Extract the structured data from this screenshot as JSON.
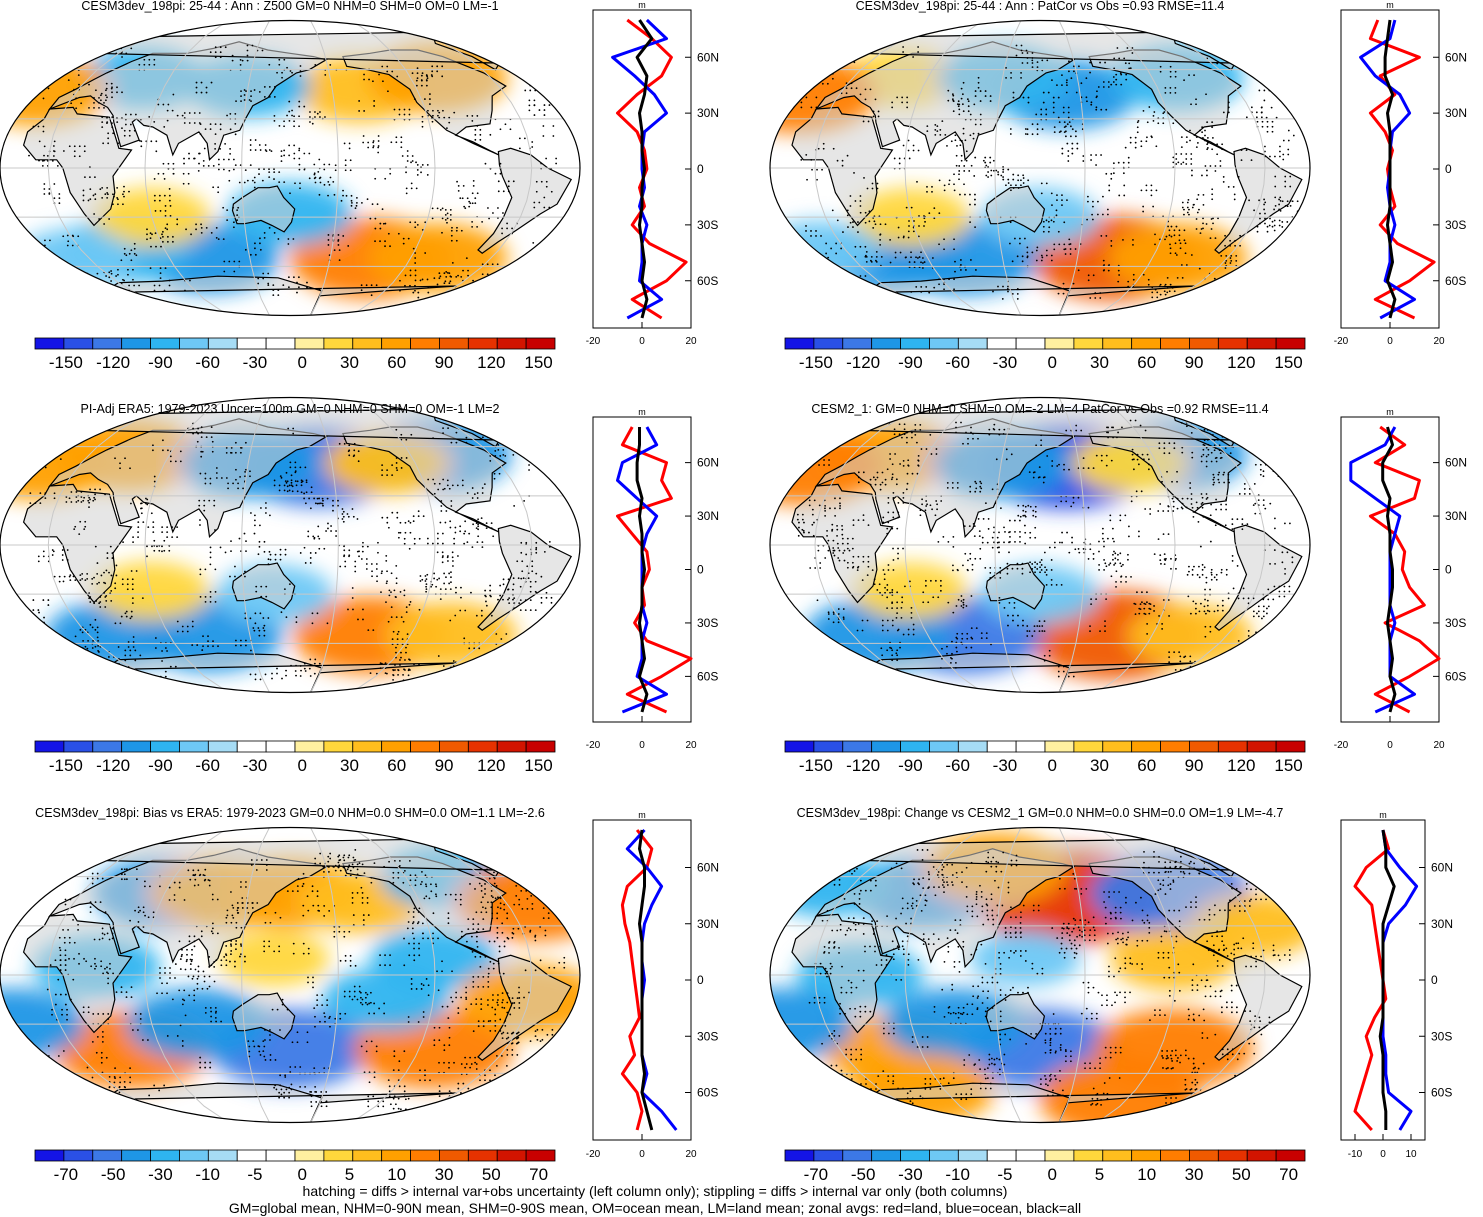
{
  "footer": {
    "line1": "hatching = diffs > internal var+obs uncertainty (left column only); stippling = diffs > internal var only (both columns)",
    "line2": "GM=global mean, NHM=0-90N mean, SHM=0-90S mean, OM=ocean mean, LM=land mean; zonal avgs: red=land, blue=ocean, black=all"
  },
  "colors": {
    "land": "#d2d2d2",
    "zonal_land": "#ff0000",
    "zonal_ocean": "#0000ff",
    "zonal_all": "#000000",
    "graticule": "#c8c8c8",
    "colorbar_a": [
      "#1414e6",
      "#2a50e6",
      "#3c78e6",
      "#1e96e6",
      "#2eb4f0",
      "#6ec8f5",
      "#a6dcf5",
      "#ffffff",
      "#ffffff",
      "#fff0a0",
      "#ffd73c",
      "#ffbe1e",
      "#ffa000",
      "#ff7d00",
      "#f05a00",
      "#e63200",
      "#d21400",
      "#c80000"
    ],
    "colorbar_b": [
      "#1414e6",
      "#2a50e6",
      "#3c78e6",
      "#1e96e6",
      "#2eb4f0",
      "#6ec8f5",
      "#a6dcf5",
      "#ffffff",
      "#ffffff",
      "#fff0a0",
      "#ffd73c",
      "#ffbe1e",
      "#ffa000",
      "#ff7d00",
      "#f05a00",
      "#e63200",
      "#d21400",
      "#c80000"
    ]
  },
  "chart_data": [
    {
      "type": "map",
      "title": "CESM3dev_198pi: 25-44 : Ann : Z500 GM=0 NHM=0 SHM=0 OM=0 LM=-1",
      "colorbar": {
        "units": "m",
        "tick_labels": [
          "-150",
          "-120",
          "-90",
          "-60",
          "-30",
          "0",
          "30",
          "60",
          "90",
          "120",
          "150"
        ]
      },
      "anomaly_blobs": [
        {
          "lon": -160,
          "lat": 48,
          "value": 50
        },
        {
          "lon": 40,
          "lat": 55,
          "value": -40
        },
        {
          "lon": 120,
          "lat": 50,
          "value": -40
        },
        {
          "lon": -100,
          "lat": 55,
          "value": 60
        },
        {
          "lon": -30,
          "lat": 48,
          "value": 70
        },
        {
          "lon": -150,
          "lat": -55,
          "value": 90
        },
        {
          "lon": -100,
          "lat": -55,
          "value": 60
        },
        {
          "lon": 90,
          "lat": -55,
          "value": -60
        },
        {
          "lon": 30,
          "lat": -50,
          "value": -50
        },
        {
          "lon": 150,
          "lat": -28,
          "value": -40
        },
        {
          "lon": 60,
          "lat": -30,
          "value": 30
        },
        {
          "lon": -10,
          "lat": -55,
          "value": -30
        }
      ],
      "zonal": {
        "x_range": [
          -20,
          20
        ],
        "x_ticks": [
          "-20",
          "0",
          "20"
        ],
        "lat_ticks": [
          "60N",
          "30N",
          "0",
          "30S",
          "60S"
        ],
        "units": "m",
        "lats": [
          80,
          70,
          60,
          50,
          40,
          30,
          20,
          10,
          0,
          -10,
          -20,
          -30,
          -40,
          -50,
          -60,
          -70,
          -80
        ],
        "land": [
          -6,
          4,
          12,
          8,
          -2,
          -10,
          -2,
          1,
          2,
          -1,
          1,
          -4,
          3,
          18,
          10,
          -4,
          8
        ],
        "ocean": [
          2,
          10,
          -12,
          -3,
          5,
          10,
          1,
          0,
          0,
          1,
          -1,
          2,
          0,
          0,
          -1,
          8,
          -6
        ],
        "all": [
          -1,
          4,
          -2,
          2,
          1,
          -1,
          0,
          0,
          1,
          0,
          0,
          -1,
          0,
          1,
          0,
          2,
          0
        ]
      }
    },
    {
      "type": "map",
      "title": "CESM3dev_198pi: 25-44 : Ann : PatCor vs Obs =0.93 RMSE=11.4",
      "colorbar": {
        "units": "m",
        "tick_labels": [
          "-150",
          "-120",
          "-90",
          "-60",
          "-30",
          "0",
          "30",
          "60",
          "90",
          "120",
          "150"
        ]
      },
      "anomaly_blobs": [
        {
          "lon": 170,
          "lat": 45,
          "value": -60
        },
        {
          "lon": 40,
          "lat": 55,
          "value": 30
        },
        {
          "lon": 120,
          "lat": 55,
          "value": -50
        },
        {
          "lon": -100,
          "lat": 55,
          "value": -50
        },
        {
          "lon": -30,
          "lat": 45,
          "value": 80
        },
        {
          "lon": -150,
          "lat": -55,
          "value": 100
        },
        {
          "lon": -100,
          "lat": -55,
          "value": 60
        },
        {
          "lon": 90,
          "lat": -55,
          "value": -70
        },
        {
          "lon": 30,
          "lat": -55,
          "value": -60
        },
        {
          "lon": 150,
          "lat": -30,
          "value": -30
        },
        {
          "lon": 60,
          "lat": -30,
          "value": 30
        },
        {
          "lon": -20,
          "lat": -50,
          "value": -30
        }
      ],
      "zonal": {
        "x_range": [
          -20,
          20
        ],
        "x_ticks": [
          "-20",
          "0",
          "20"
        ],
        "lat_ticks": [
          "60N",
          "30N",
          "0",
          "30S",
          "60S"
        ],
        "units": "m",
        "lats": [
          80,
          70,
          60,
          50,
          40,
          30,
          20,
          10,
          0,
          -10,
          -20,
          -30,
          -40,
          -50,
          -60,
          -70,
          -80
        ],
        "land": [
          -5,
          -8,
          12,
          -4,
          2,
          -8,
          -2,
          1,
          -1,
          0,
          2,
          -4,
          3,
          18,
          8,
          -6,
          10
        ],
        "ocean": [
          2,
          0,
          -12,
          -6,
          4,
          8,
          1,
          0,
          0,
          -1,
          0,
          2,
          0,
          0,
          -2,
          10,
          -4
        ],
        "all": [
          0,
          -1,
          -2,
          -2,
          1,
          -1,
          0,
          0,
          0,
          0,
          0,
          -1,
          0,
          1,
          -1,
          2,
          0
        ]
      }
    },
    {
      "type": "map",
      "title": "PI-Adj ERA5: 1979-2023 Uncer=100m GM=0 NHM=0 SHM=0 OM=-1 LM=2",
      "colorbar": {
        "units": "m",
        "tick_labels": [
          "-150",
          "-120",
          "-90",
          "-60",
          "-30",
          "0",
          "30",
          "60",
          "90",
          "120",
          "150"
        ]
      },
      "anomaly_blobs": [
        {
          "lon": 170,
          "lat": 48,
          "value": -90
        },
        {
          "lon": 30,
          "lat": 55,
          "value": 70
        },
        {
          "lon": 120,
          "lat": 50,
          "value": -60
        },
        {
          "lon": -100,
          "lat": 55,
          "value": -70
        },
        {
          "lon": -30,
          "lat": 50,
          "value": 70
        },
        {
          "lon": -150,
          "lat": -55,
          "value": 80
        },
        {
          "lon": -90,
          "lat": -55,
          "value": 50
        },
        {
          "lon": 90,
          "lat": -55,
          "value": -70
        },
        {
          "lon": 20,
          "lat": -55,
          "value": -60
        },
        {
          "lon": 140,
          "lat": -30,
          "value": -30
        },
        {
          "lon": 60,
          "lat": -28,
          "value": 30
        },
        {
          "lon": -140,
          "lat": 50,
          "value": 40
        }
      ],
      "zonal": {
        "x_range": [
          -20,
          20
        ],
        "x_ticks": [
          "-20",
          "0",
          "20"
        ],
        "lat_ticks": [
          "60N",
          "30N",
          "0",
          "30S",
          "60S"
        ],
        "units": "m",
        "lats": [
          80,
          70,
          60,
          50,
          40,
          30,
          20,
          10,
          0,
          -10,
          -20,
          -30,
          -40,
          -50,
          -60,
          -70,
          -80
        ],
        "land": [
          -4,
          -8,
          10,
          8,
          12,
          -10,
          -4,
          2,
          3,
          0,
          1,
          -3,
          2,
          20,
          8,
          -6,
          10
        ],
        "ocean": [
          2,
          6,
          -8,
          -10,
          -2,
          6,
          2,
          0,
          0,
          0,
          0,
          2,
          0,
          0,
          -2,
          10,
          -8
        ],
        "all": [
          -1,
          -1,
          -2,
          -2,
          0,
          -1,
          0,
          0,
          1,
          0,
          0,
          -1,
          0,
          1,
          -1,
          2,
          0
        ]
      }
    },
    {
      "type": "map",
      "title": "CESM2_1: GM=0 NHM=0 SHM=0 OM=-2 LM=4 PatCor vs Obs =0.92 RMSE=11.4",
      "colorbar": {
        "units": "m",
        "tick_labels": [
          "-150",
          "-120",
          "-90",
          "-60",
          "-30",
          "0",
          "30",
          "60",
          "90",
          "120",
          "150"
        ]
      },
      "anomaly_blobs": [
        {
          "lon": 170,
          "lat": 48,
          "value": -100
        },
        {
          "lon": 30,
          "lat": 55,
          "value": 60
        },
        {
          "lon": 120,
          "lat": 50,
          "value": -60
        },
        {
          "lon": -100,
          "lat": 55,
          "value": -60
        },
        {
          "lon": -30,
          "lat": 48,
          "value": 80
        },
        {
          "lon": -150,
          "lat": -55,
          "value": 110
        },
        {
          "lon": -90,
          "lat": -55,
          "value": 40
        },
        {
          "lon": 90,
          "lat": -55,
          "value": -80
        },
        {
          "lon": 20,
          "lat": -55,
          "value": -70
        },
        {
          "lon": 150,
          "lat": -30,
          "value": -30
        },
        {
          "lon": 60,
          "lat": -28,
          "value": 25
        },
        {
          "lon": -140,
          "lat": 50,
          "value": 30
        }
      ],
      "zonal": {
        "x_range": [
          -20,
          20
        ],
        "x_ticks": [
          "-20",
          "0",
          "20"
        ],
        "lat_ticks": [
          "60N",
          "30N",
          "0",
          "30S",
          "60S"
        ],
        "units": "m",
        "lats": [
          80,
          70,
          60,
          50,
          40,
          30,
          20,
          10,
          0,
          -10,
          -20,
          -30,
          -40,
          -50,
          -60,
          -70,
          -80
        ],
        "land": [
          -4,
          6,
          -6,
          12,
          10,
          -8,
          2,
          6,
          5,
          8,
          14,
          -2,
          12,
          20,
          8,
          -6,
          8
        ],
        "ocean": [
          2,
          -2,
          -16,
          -16,
          -6,
          4,
          2,
          0,
          0,
          0,
          0,
          2,
          0,
          0,
          0,
          10,
          -6
        ],
        "all": [
          -1,
          1,
          -3,
          -3,
          0,
          -1,
          0,
          0,
          1,
          1,
          0,
          -1,
          0,
          1,
          0,
          2,
          0
        ]
      }
    },
    {
      "type": "map",
      "title": "CESM3dev_198pi: Bias vs ERA5: 1979-2023 GM=0.0 NHM=0.0 SHM=0.0 OM=1.1 LM=-2.6",
      "colorbar": {
        "units": "m",
        "tick_labels": [
          "-70",
          "-50",
          "-30",
          "-10",
          "-5",
          "0",
          "5",
          "10",
          "30",
          "50",
          "70"
        ]
      },
      "anomaly_blobs": [
        {
          "lon": 60,
          "lat": 50,
          "value": -30
        },
        {
          "lon": 100,
          "lat": 50,
          "value": 30
        },
        {
          "lon": 150,
          "lat": 50,
          "value": 30
        },
        {
          "lon": -160,
          "lat": 45,
          "value": 20
        },
        {
          "lon": -90,
          "lat": 60,
          "value": -20
        },
        {
          "lon": -40,
          "lat": 45,
          "value": 40
        },
        {
          "lon": 30,
          "lat": 5,
          "value": -20
        },
        {
          "lon": -120,
          "lat": 10,
          "value": -20
        },
        {
          "lon": 140,
          "lat": 10,
          "value": 10
        },
        {
          "lon": 40,
          "lat": -45,
          "value": 40
        },
        {
          "lon": 150,
          "lat": -45,
          "value": -40
        },
        {
          "lon": -110,
          "lat": -45,
          "value": 40
        },
        {
          "lon": -30,
          "lat": -30,
          "value": -30
        },
        {
          "lon": 90,
          "lat": -30,
          "value": -30
        },
        {
          "lon": -150,
          "lat": -15,
          "value": -20
        },
        {
          "lon": -60,
          "lat": -15,
          "value": 30
        }
      ],
      "zonal": {
        "x_range": [
          -20,
          20
        ],
        "x_ticks": [
          "-20",
          "0",
          "20"
        ],
        "lat_ticks": [
          "60N",
          "30N",
          "0",
          "30S",
          "60S"
        ],
        "units": "m",
        "lats": [
          80,
          70,
          60,
          50,
          40,
          30,
          20,
          10,
          0,
          -10,
          -20,
          -30,
          -40,
          -50,
          -60,
          -70,
          -80
        ],
        "land": [
          -2,
          4,
          2,
          -6,
          -8,
          -7,
          -5,
          -4,
          -3,
          -2,
          -1,
          -5,
          -3,
          -8,
          -2,
          0,
          -2
        ],
        "ocean": [
          1,
          -6,
          2,
          8,
          4,
          1,
          0,
          0,
          1,
          0,
          0,
          0,
          0,
          2,
          0,
          8,
          14
        ],
        "all": [
          0,
          -1,
          1,
          1,
          0,
          -1,
          0,
          0,
          0,
          0,
          0,
          0,
          0,
          1,
          0,
          2,
          4
        ]
      }
    },
    {
      "type": "map",
      "title": "CESM3dev_198pi: Change vs CESM2_1 GM=0.0 NHM=0.0 SHM=0.0 OM=1.9 LM=-4.7",
      "colorbar": {
        "units": "m",
        "tick_labels": [
          "-70",
          "-50",
          "-30",
          "-10",
          "-5",
          "0",
          "5",
          "10",
          "30",
          "50",
          "70"
        ]
      },
      "anomaly_blobs": [
        {
          "lon": 170,
          "lat": 48,
          "value": 60
        },
        {
          "lon": 60,
          "lat": 50,
          "value": -30
        },
        {
          "lon": 110,
          "lat": 65,
          "value": 30
        },
        {
          "lon": -110,
          "lat": 50,
          "value": -40
        },
        {
          "lon": -60,
          "lat": 30,
          "value": 20
        },
        {
          "lon": -20,
          "lat": 55,
          "value": -20
        },
        {
          "lon": 30,
          "lat": 0,
          "value": -20
        },
        {
          "lon": -120,
          "lat": 10,
          "value": 20
        },
        {
          "lon": 140,
          "lat": 10,
          "value": -10
        },
        {
          "lon": 40,
          "lat": -45,
          "value": 30
        },
        {
          "lon": 150,
          "lat": -45,
          "value": -40
        },
        {
          "lon": -110,
          "lat": -45,
          "value": 40
        },
        {
          "lon": -30,
          "lat": -30,
          "value": -30
        },
        {
          "lon": 90,
          "lat": -30,
          "value": -30
        },
        {
          "lon": -130,
          "lat": -75,
          "value": 40
        },
        {
          "lon": 40,
          "lat": -70,
          "value": 30
        }
      ],
      "zonal": {
        "x_range": [
          -15,
          15
        ],
        "x_ticks": [
          "-10",
          "0",
          "10"
        ],
        "lat_ticks": [
          "60N",
          "30N",
          "0",
          "30S",
          "60S"
        ],
        "units": "m",
        "lats": [
          80,
          70,
          60,
          50,
          40,
          30,
          20,
          10,
          0,
          -10,
          -20,
          -30,
          -40,
          -50,
          -60,
          -70,
          -80
        ],
        "land": [
          0,
          2,
          -6,
          -10,
          -4,
          -3,
          -2,
          -1,
          0,
          1,
          -3,
          -6,
          -4,
          -6,
          -8,
          -10,
          -4
        ],
        "ocean": [
          0,
          1,
          6,
          12,
          8,
          2,
          0,
          0,
          0,
          0,
          0,
          0,
          1,
          1,
          2,
          10,
          6
        ],
        "all": [
          0,
          1,
          1,
          4,
          2,
          0,
          0,
          0,
          0,
          0,
          0,
          -1,
          0,
          0,
          0,
          1,
          1
        ]
      }
    }
  ]
}
